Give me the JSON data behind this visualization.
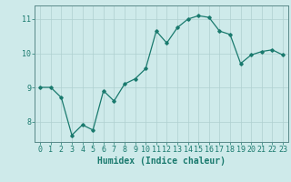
{
  "x": [
    0,
    1,
    2,
    3,
    4,
    5,
    6,
    7,
    8,
    9,
    10,
    11,
    12,
    13,
    14,
    15,
    16,
    17,
    18,
    19,
    20,
    21,
    22,
    23
  ],
  "y": [
    9.0,
    9.0,
    8.7,
    7.6,
    7.9,
    7.75,
    8.9,
    8.6,
    9.1,
    9.25,
    9.55,
    10.65,
    10.3,
    10.75,
    11.0,
    11.1,
    11.05,
    10.65,
    10.55,
    9.7,
    9.95,
    10.05,
    10.1,
    9.95
  ],
  "line_color": "#1a7a6e",
  "marker": "D",
  "marker_size": 1.8,
  "line_width": 0.9,
  "xlabel": "Humidex (Indice chaleur)",
  "xlabel_fontsize": 7,
  "background_color": "#ceeaea",
  "grid_color": "#afd0d0",
  "axis_color": "#5a8a8a",
  "tick_color": "#1a7a6e",
  "ylim": [
    7.4,
    11.4
  ],
  "xlim": [
    -0.5,
    23.5
  ],
  "yticks": [
    8,
    9,
    10,
    11
  ],
  "xticks": [
    0,
    1,
    2,
    3,
    4,
    5,
    6,
    7,
    8,
    9,
    10,
    11,
    12,
    13,
    14,
    15,
    16,
    17,
    18,
    19,
    20,
    21,
    22,
    23
  ],
  "tick_fontsize": 6
}
